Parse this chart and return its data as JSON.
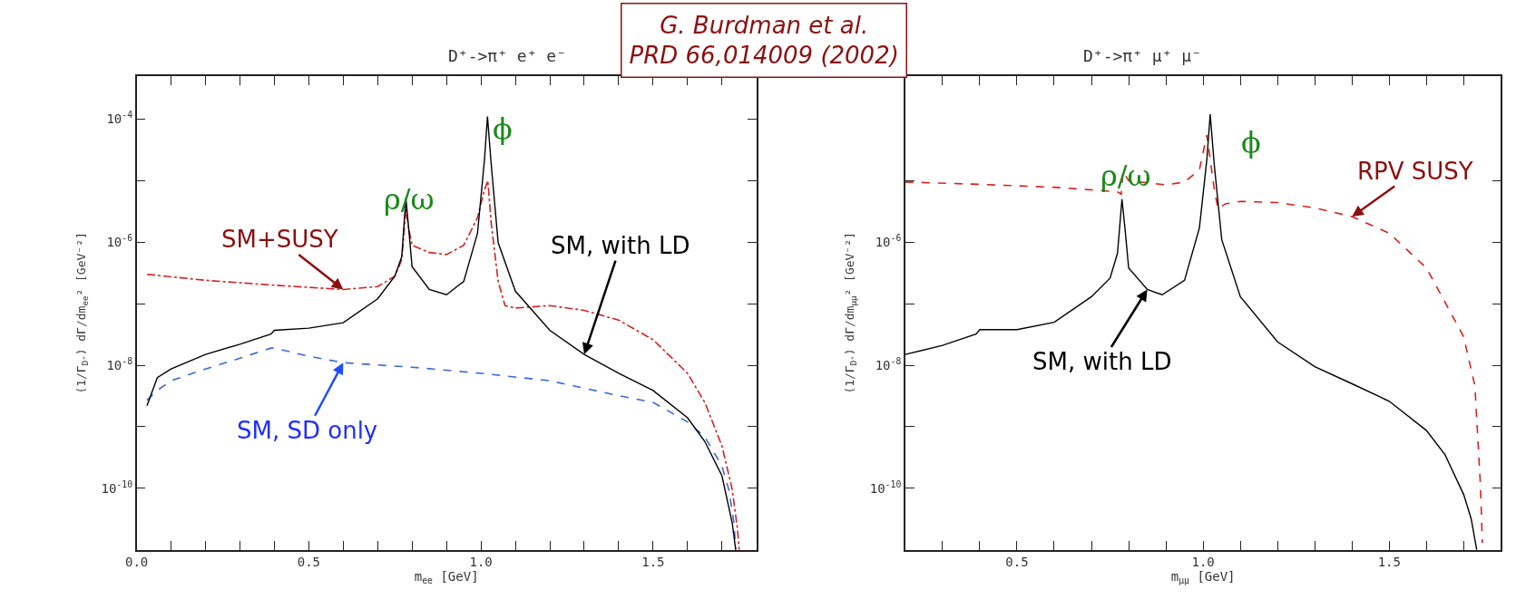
{
  "chart_data": [
    {
      "type": "line",
      "title": "D⁺->π⁺ e⁺ e⁻",
      "xlabel": "m$_{ee}$ [GeV]",
      "ylabel": "(1/Γ$_{D⁺}$) dΓ/dm$_{ee}$² [GeV⁻²]",
      "log": "y",
      "xlim": [
        0,
        1.8
      ],
      "xticks": [
        {
          "value": 0,
          "label": "0.0"
        },
        {
          "value": 0.1,
          "label": null
        },
        {
          "value": 0.2,
          "label": null
        },
        {
          "value": 0.3,
          "label": null
        },
        {
          "value": 0.4,
          "label": null
        },
        {
          "value": 0.5,
          "label": "0.5"
        },
        {
          "value": 0.6,
          "label": null
        },
        {
          "value": 0.7,
          "label": null
        },
        {
          "value": 0.8,
          "label": null
        },
        {
          "value": 0.9,
          "label": null
        },
        {
          "value": 1.0,
          "label": "1.0"
        },
        {
          "value": 1.1,
          "label": null
        },
        {
          "value": 1.2,
          "label": null
        },
        {
          "value": 1.3,
          "label": null
        },
        {
          "value": 1.4,
          "label": null
        },
        {
          "value": 1.5,
          "label": "1.5"
        },
        {
          "value": 1.6,
          "label": null
        },
        {
          "value": 1.7,
          "label": null
        }
      ],
      "ylim": [
        1e-11,
        0.0005
      ],
      "yticks": [
        {
          "value": 1e-10,
          "label": "10$^{-10}$"
        },
        {
          "value": 1e-09,
          "label": null
        },
        {
          "value": 1e-08,
          "label": "10$^{-8}$"
        },
        {
          "value": 1e-07,
          "label": null
        },
        {
          "value": 1e-06,
          "label": "10$^{-6}$"
        },
        {
          "value": 1e-05,
          "label": null
        },
        {
          "value": 0.0001,
          "label": "10$^{-4}$"
        }
      ],
      "annotations": [
        "G. Burdman et al.\nPRD 66,014009 (2002)",
        "ρ/ω",
        "ϕ"
      ],
      "series": [
        {
          "name": "SM+SUSY",
          "color": "#d62020",
          "line_style": "dashdot",
          "x": [
            0.03,
            0.2,
            0.4,
            0.6,
            0.7,
            0.75,
            0.77,
            0.782,
            0.79,
            0.8,
            0.85,
            0.9,
            0.95,
            0.99,
            1.01,
            1.02,
            1.03,
            1.05,
            1.07,
            1.1,
            1.2,
            1.3,
            1.4,
            1.5,
            1.6,
            1.65,
            1.7,
            1.73,
            1.745,
            1.75
          ],
          "values": [
            3e-07,
            2.4e-07,
            2e-07,
            1.7e-07,
            1.9e-07,
            2.8e-07,
            5.2e-07,
            3.5e-06,
            1.7e-06,
            8.9e-07,
            6.8e-07,
            6.3e-07,
            8.9e-07,
            2.5e-06,
            7e-06,
            1e-05,
            2e-06,
            2.3e-07,
            9.3e-08,
            8.5e-08,
            9.3e-08,
            7.8e-08,
            5.4e-08,
            2.6e-08,
            7.4e-09,
            2.5e-09,
            4.9e-10,
            9.5e-11,
            2.2e-11,
            1e-11
          ]
        },
        {
          "name": "SM, SD only",
          "color": "#3a66d8",
          "line_style": "dashed",
          "x": [
            0.03,
            0.06,
            0.1,
            0.2,
            0.3,
            0.39,
            0.4,
            0.5,
            0.6,
            0.8,
            1.0,
            1.2,
            1.4,
            1.5,
            1.6,
            1.65,
            1.7,
            1.72,
            1.735,
            1.74
          ],
          "values": [
            2.7e-09,
            3.9e-09,
            5.6e-09,
            8.7e-09,
            1.3e-08,
            1.9e-08,
            1.9e-08,
            1.4e-08,
            1.1e-08,
            9.3e-09,
            7.4e-09,
            5.6e-09,
            3.2e-09,
            2.5e-09,
            1.2e-09,
            6.9e-10,
            2.3e-10,
            9.5e-11,
            2.7e-11,
            1e-11
          ]
        },
        {
          "name": "SM, with LD",
          "color": "#000000",
          "line_style": "solid",
          "x": [
            0.03,
            0.06,
            0.1,
            0.2,
            0.3,
            0.39,
            0.4,
            0.5,
            0.6,
            0.7,
            0.75,
            0.77,
            0.782,
            0.79,
            0.8,
            0.85,
            0.9,
            0.95,
            0.99,
            1.01,
            1.019,
            1.03,
            1.05,
            1.1,
            1.2,
            1.3,
            1.4,
            1.5,
            1.6,
            1.65,
            1.7,
            1.73,
            1.74
          ],
          "values": [
            2.2e-09,
            6.3e-09,
            8.7e-09,
            1.5e-08,
            2.2e-08,
            3.2e-08,
            3.7e-08,
            4e-08,
            4.9e-08,
            1.2e-07,
            2.8e-07,
            5.8e-07,
            5.2e-06,
            1.7e-06,
            4e-07,
            1.7e-07,
            1.4e-07,
            2.3e-07,
            1.4e-06,
            2.1e-05,
            0.00011,
            1.8e-05,
            9.8e-07,
            1.6e-07,
            3.7e-08,
            1.5e-08,
            7.4e-09,
            3.9e-09,
            1.4e-09,
            5.8e-10,
            1.6e-10,
            2.7e-11,
            1e-11
          ]
        }
      ]
    },
    {
      "type": "line",
      "title": "D⁺->π⁺ μ⁺ μ⁻",
      "xlabel": "m$_{μμ}$ [GeV]",
      "ylabel": "(1/Γ$_{D⁺}$) dΓ/dm$_{μμ}$² [GeV⁻²]",
      "log": "y",
      "xlim": [
        0.2,
        1.8
      ],
      "xticks": [
        {
          "value": 0.3,
          "label": null
        },
        {
          "value": 0.4,
          "label": null
        },
        {
          "value": 0.5,
          "label": "0.5"
        },
        {
          "value": 0.6,
          "label": null
        },
        {
          "value": 0.7,
          "label": null
        },
        {
          "value": 0.8,
          "label": null
        },
        {
          "value": 0.9,
          "label": null
        },
        {
          "value": 1.0,
          "label": "1.0"
        },
        {
          "value": 1.1,
          "label": null
        },
        {
          "value": 1.2,
          "label": null
        },
        {
          "value": 1.3,
          "label": null
        },
        {
          "value": 1.4,
          "label": null
        },
        {
          "value": 1.5,
          "label": "1.5"
        },
        {
          "value": 1.6,
          "label": null
        },
        {
          "value": 1.7,
          "label": null
        }
      ],
      "ylim": [
        1e-11,
        0.0005
      ],
      "yticks": [
        {
          "value": 1e-10,
          "label": "10$^{-10}$"
        },
        {
          "value": 1e-09,
          "label": null
        },
        {
          "value": 1e-08,
          "label": "10$^{-8}$"
        },
        {
          "value": 1e-07,
          "label": null
        },
        {
          "value": 1e-06,
          "label": "10$^{-6}$"
        },
        {
          "value": 1e-05,
          "label": null
        }
      ],
      "annotations": [
        "ρ/ω",
        "ϕ"
      ],
      "series": [
        {
          "name": "RPV SUSY",
          "color": "#d62020",
          "line_style": "dashed",
          "x": [
            0.2,
            0.4,
            0.6,
            0.77,
            0.78,
            0.785,
            0.8,
            0.9,
            0.95,
            0.99,
            1.01,
            1.03,
            1.04,
            1.06,
            1.1,
            1.2,
            1.3,
            1.4,
            1.5,
            1.6,
            1.7,
            1.73,
            1.745,
            1.75
          ],
          "values": [
            9.5e-06,
            8.7e-06,
            7.8e-06,
            6.6e-06,
            6e-06,
            1.4e-05,
            1e-05,
            8.5e-06,
            9.5e-06,
            1.5e-05,
            5.5e-05,
            7.2e-06,
            3.5e-06,
            4.2e-06,
            4.6e-06,
            4.4e-06,
            3.6e-06,
            2.6e-06,
            1.4e-06,
            3.8e-07,
            2.9e-08,
            4.6e-09,
            1.1e-10,
            1.3e-11
          ]
        },
        {
          "name": "SM, with LD",
          "color": "#000000",
          "line_style": "solid",
          "x": [
            0.2,
            0.3,
            0.39,
            0.4,
            0.5,
            0.6,
            0.7,
            0.75,
            0.77,
            0.782,
            0.79,
            0.8,
            0.85,
            0.89,
            0.95,
            0.99,
            1.01,
            1.019,
            1.03,
            1.05,
            1.1,
            1.2,
            1.3,
            1.4,
            1.5,
            1.6,
            1.65,
            1.7,
            1.72,
            1.735
          ],
          "values": [
            1.5e-08,
            2.1e-08,
            3.2e-08,
            3.8e-08,
            3.8e-08,
            5e-08,
            1.3e-07,
            2.6e-07,
            6.6e-07,
            5e-06,
            1.7e-06,
            3.8e-07,
            1.7e-07,
            1.4e-07,
            2.4e-07,
            1.7e-06,
            2.2e-05,
            0.00012,
            1.8e-05,
            1.1e-06,
            1.3e-07,
            2.4e-08,
            9.5e-09,
            5e-09,
            2.6e-09,
            8.7e-10,
            3.5e-10,
            7.9e-11,
            3.2e-11,
            1e-11
          ]
        }
      ]
    }
  ]
}
